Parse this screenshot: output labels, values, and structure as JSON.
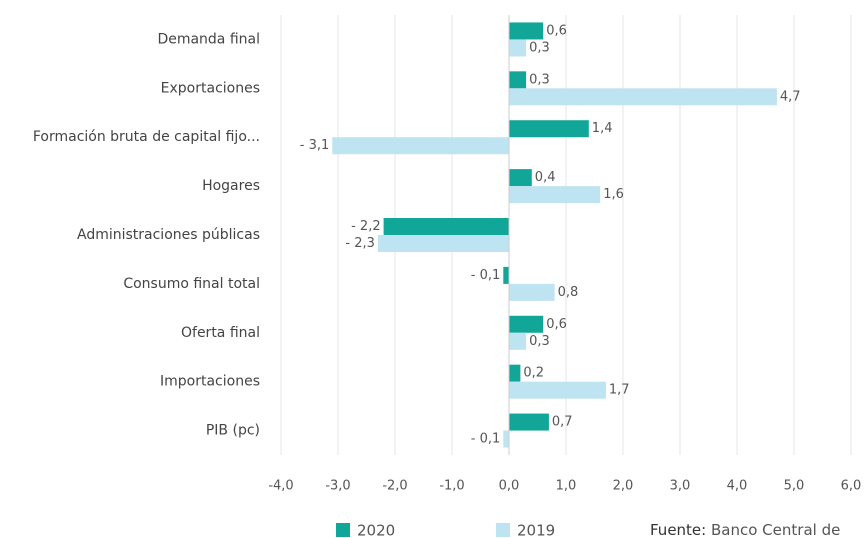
{
  "chart_data": {
    "type": "bar",
    "orientation": "horizontal",
    "categories": [
      "Demanda final",
      "Exportaciones",
      "Formación bruta de capital fijo...",
      "Hogares",
      "Administraciones públicas",
      "Consumo final total",
      "Oferta final",
      "Importaciones",
      "PIB (pc)"
    ],
    "series": [
      {
        "name": "2020",
        "color": "#11a697",
        "values": [
          0.6,
          0.3,
          1.4,
          0.4,
          -2.2,
          -0.1,
          0.6,
          0.2,
          0.7
        ],
        "value_labels": [
          "0,6",
          "0,3",
          "1,4",
          "0,4",
          "- 2,2",
          "- 0,1",
          "0,6",
          "0,2",
          "0,7"
        ]
      },
      {
        "name": "2019",
        "color": "#bee3f1",
        "values": [
          0.3,
          4.7,
          -3.1,
          1.6,
          -2.3,
          0.8,
          0.3,
          1.7,
          -0.1
        ],
        "value_labels": [
          "0,3",
          "4,7",
          "- 3,1",
          "1,6",
          "- 2,3",
          "0,8",
          "0,3",
          "1,7",
          "- 0,1"
        ]
      }
    ],
    "xlim": [
      -4,
      6
    ],
    "xticks": [
      {
        "value": -4,
        "label": "-4,0"
      },
      {
        "value": -3,
        "label": "-3,0"
      },
      {
        "value": -2,
        "label": "-2,0"
      },
      {
        "value": -1,
        "label": "-1,0"
      },
      {
        "value": 0,
        "label": "0,0"
      },
      {
        "value": 1,
        "label": "1,0"
      },
      {
        "value": 2,
        "label": "2,0"
      },
      {
        "value": 3,
        "label": "3,0"
      },
      {
        "value": 4,
        "label": "4,0"
      },
      {
        "value": 5,
        "label": "5,0"
      },
      {
        "value": 6,
        "label": "6,0"
      }
    ],
    "grid": true,
    "source_label": "Fuente:",
    "source_text": "Banco Central de"
  }
}
